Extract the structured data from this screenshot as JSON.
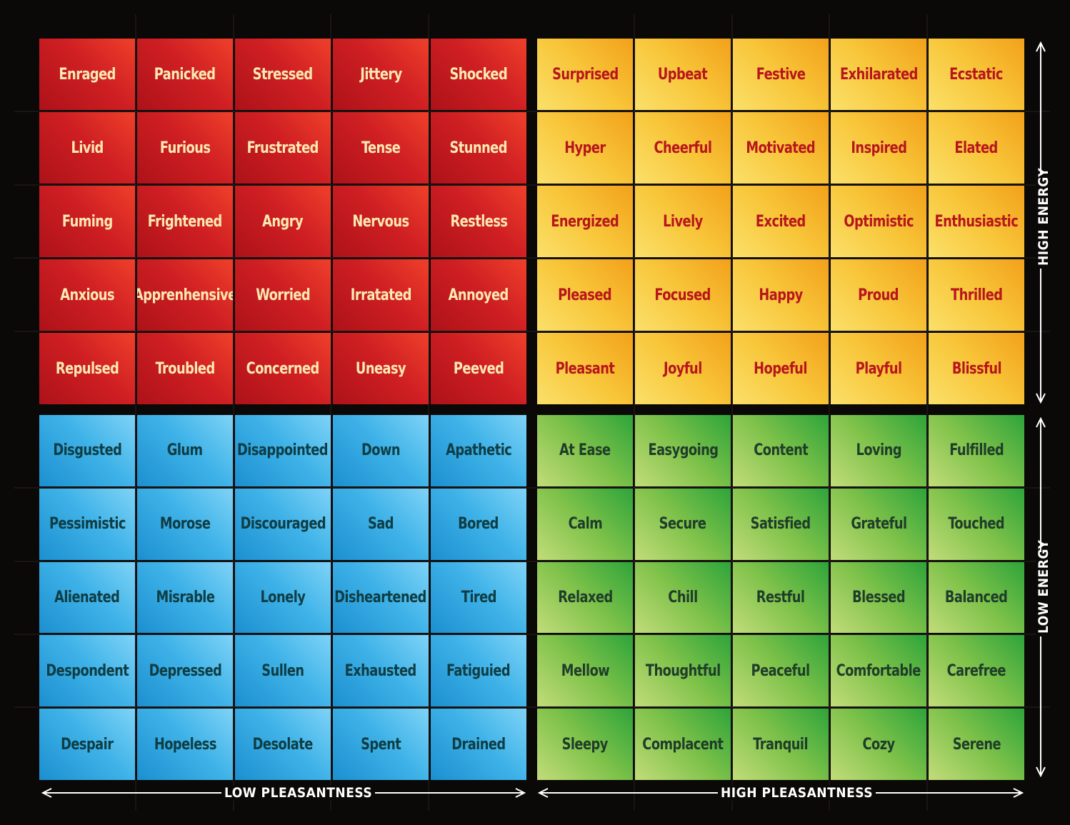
{
  "quadrants": {
    "red": [
      [
        "Enraged",
        "Panicked",
        "Stressed",
        "Jittery",
        "Shocked"
      ],
      [
        "Livid",
        "Furious",
        "Frustrated",
        "Tense",
        "Stunned"
      ],
      [
        "Fuming",
        "Frightened",
        "Angry",
        "Nervous",
        "Restless"
      ],
      [
        "Anxious",
        "Apprenhensive",
        "Worried",
        "Irratated",
        "Annoyed"
      ],
      [
        "Repulsed",
        "Troubled",
        "Concerned",
        "Uneasy",
        "Peeved"
      ]
    ],
    "yellow": [
      [
        "Surprised",
        "Upbeat",
        "Festive",
        "Exhilarated",
        "Ecstatic"
      ],
      [
        "Hyper",
        "Cheerful",
        "Motivated",
        "Inspired",
        "Elated"
      ],
      [
        "Energized",
        "Lively",
        "Excited",
        "Optimistic",
        "Enthusiastic"
      ],
      [
        "Pleased",
        "Focused",
        "Happy",
        "Proud",
        "Thrilled"
      ],
      [
        "Pleasant",
        "Joyful",
        "Hopeful",
        "Playful",
        "Blissful"
      ]
    ],
    "blue": [
      [
        "Disgusted",
        "Glum",
        "Disappointed",
        "Down",
        "Apathetic"
      ],
      [
        "Pessimistic",
        "Morose",
        "Discouraged",
        "Sad",
        "Bored"
      ],
      [
        "Alienated",
        "Misrable",
        "Lonely",
        "Disheartened",
        "Tired"
      ],
      [
        "Despondent",
        "Depressed",
        "Sullen",
        "Exhausted",
        "Fatiguied"
      ],
      [
        "Despair",
        "Hopeless",
        "Desolate",
        "Spent",
        "Drained"
      ]
    ],
    "green": [
      [
        "At Ease",
        "Easygoing",
        "Content",
        "Loving",
        "Fulfilled"
      ],
      [
        "Calm",
        "Secure",
        "Satisfied",
        "Grateful",
        "Touched"
      ],
      [
        "Relaxed",
        "Chill",
        "Restful",
        "Blessed",
        "Balanced"
      ],
      [
        "Mellow",
        "Thoughtful",
        "Peaceful",
        "Comfortable",
        "Carefree"
      ],
      [
        "Sleepy",
        "Complacent",
        "Tranquil",
        "Cozy",
        "Serene"
      ]
    ]
  },
  "axes": {
    "low_pleasantness": "LOW PLEASANTNESS",
    "high_pleasantness": "HIGH PLEASANTNESS",
    "high_energy": "HIGH ENERGY",
    "low_energy": "LOW ENERGY"
  },
  "colors": {
    "background": "#0b0808",
    "red": "#cf1f23",
    "yellow": "#f8c63a",
    "blue": "#3fb3e8",
    "green": "#7fc24a"
  }
}
